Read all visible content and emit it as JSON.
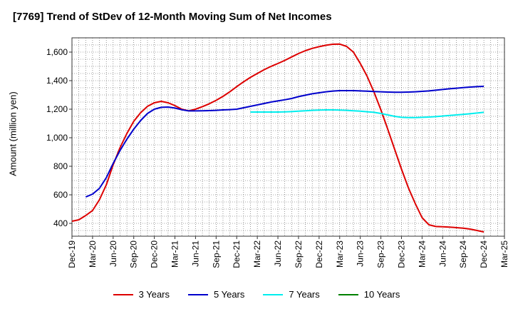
{
  "chart_data": {
    "type": "line",
    "title": "[7769]  Trend of StDev of 12-Month Moving Sum of Net Incomes",
    "ylabel": "Amount (million yen)",
    "xlabel": "",
    "ylim": [
      310,
      1700
    ],
    "yticks": [
      400,
      600,
      800,
      1000,
      1200,
      1400,
      1600
    ],
    "ytick_labels": [
      "400",
      "600",
      "800",
      "1,000",
      "1,200",
      "1,400",
      "1,600"
    ],
    "xticks": [
      "Dec-19",
      "Mar-20",
      "Jun-20",
      "Sep-20",
      "Dec-20",
      "Mar-21",
      "Jun-21",
      "Sep-21",
      "Dec-21",
      "Mar-22",
      "Jun-22",
      "Sep-22",
      "Dec-22",
      "Mar-23",
      "Jun-23",
      "Sep-23",
      "Dec-23",
      "Mar-24",
      "Jun-24",
      "Sep-24",
      "Dec-24",
      "Mar-25"
    ],
    "grid": true,
    "legend_position": "bottom",
    "series": [
      {
        "name": "3 Years",
        "color": "#dd0000",
        "points": [
          [
            "Dec-19",
            415
          ],
          [
            "Jan-20",
            425
          ],
          [
            "Feb-20",
            455
          ],
          [
            "Mar-20",
            490
          ],
          [
            "Apr-20",
            565
          ],
          [
            "May-20",
            670
          ],
          [
            "Jun-20",
            810
          ],
          [
            "Jul-20",
            930
          ],
          [
            "Aug-20",
            1030
          ],
          [
            "Sep-20",
            1115
          ],
          [
            "Oct-20",
            1175
          ],
          [
            "Nov-20",
            1220
          ],
          [
            "Dec-20",
            1245
          ],
          [
            "Jan-21",
            1255
          ],
          [
            "Feb-21",
            1245
          ],
          [
            "Mar-21",
            1225
          ],
          [
            "Apr-21",
            1200
          ],
          [
            "May-21",
            1188
          ],
          [
            "Jun-21",
            1200
          ],
          [
            "Jul-21",
            1218
          ],
          [
            "Aug-21",
            1238
          ],
          [
            "Sep-21",
            1262
          ],
          [
            "Oct-21",
            1290
          ],
          [
            "Nov-21",
            1322
          ],
          [
            "Dec-21",
            1358
          ],
          [
            "Jan-22",
            1392
          ],
          [
            "Feb-22",
            1423
          ],
          [
            "Mar-22",
            1450
          ],
          [
            "Apr-22",
            1477
          ],
          [
            "May-22",
            1500
          ],
          [
            "Jun-22",
            1520
          ],
          [
            "Jul-22",
            1542
          ],
          [
            "Aug-22",
            1566
          ],
          [
            "Sep-22",
            1590
          ],
          [
            "Oct-22",
            1610
          ],
          [
            "Nov-22",
            1626
          ],
          [
            "Dec-22",
            1638
          ],
          [
            "Jan-23",
            1648
          ],
          [
            "Feb-23",
            1655
          ],
          [
            "Mar-23",
            1656
          ],
          [
            "Apr-23",
            1640
          ],
          [
            "May-23",
            1600
          ],
          [
            "Jun-23",
            1520
          ],
          [
            "Jul-23",
            1430
          ],
          [
            "Aug-23",
            1320
          ],
          [
            "Sep-23",
            1195
          ],
          [
            "Oct-23",
            1060
          ],
          [
            "Nov-23",
            920
          ],
          [
            "Dec-23",
            780
          ],
          [
            "Jan-24",
            650
          ],
          [
            "Feb-24",
            540
          ],
          [
            "Mar-24",
            440
          ],
          [
            "Apr-24",
            390
          ],
          [
            "May-24",
            378
          ],
          [
            "Jun-24",
            376
          ],
          [
            "Jul-24",
            374
          ],
          [
            "Aug-24",
            370
          ],
          [
            "Sep-24",
            366
          ],
          [
            "Oct-24",
            360
          ],
          [
            "Nov-24",
            350
          ],
          [
            "Dec-24",
            340
          ]
        ]
      },
      {
        "name": "5 Years",
        "color": "#0000cc",
        "points": [
          [
            "Feb-20",
            585
          ],
          [
            "Mar-20",
            605
          ],
          [
            "Apr-20",
            645
          ],
          [
            "May-20",
            720
          ],
          [
            "Jun-20",
            820
          ],
          [
            "Jul-20",
            910
          ],
          [
            "Aug-20",
            990
          ],
          [
            "Sep-20",
            1060
          ],
          [
            "Oct-20",
            1120
          ],
          [
            "Nov-20",
            1170
          ],
          [
            "Dec-20",
            1200
          ],
          [
            "Jan-21",
            1213
          ],
          [
            "Feb-21",
            1215
          ],
          [
            "Mar-21",
            1208
          ],
          [
            "Apr-21",
            1196
          ],
          [
            "May-21",
            1188
          ],
          [
            "Jun-21",
            1188
          ],
          [
            "Jul-21",
            1189
          ],
          [
            "Aug-21",
            1190
          ],
          [
            "Sep-21",
            1192
          ],
          [
            "Oct-21",
            1195
          ],
          [
            "Nov-21",
            1197
          ],
          [
            "Dec-21",
            1200
          ],
          [
            "Jan-22",
            1210
          ],
          [
            "Feb-22",
            1220
          ],
          [
            "Mar-22",
            1230
          ],
          [
            "Apr-22",
            1240
          ],
          [
            "May-22",
            1250
          ],
          [
            "Jun-22",
            1258
          ],
          [
            "Jul-22",
            1266
          ],
          [
            "Aug-22",
            1275
          ],
          [
            "Sep-22",
            1288
          ],
          [
            "Oct-22",
            1298
          ],
          [
            "Nov-22",
            1308
          ],
          [
            "Dec-22",
            1315
          ],
          [
            "Jan-23",
            1322
          ],
          [
            "Feb-23",
            1327
          ],
          [
            "Mar-23",
            1330
          ],
          [
            "Apr-23",
            1330
          ],
          [
            "May-23",
            1330
          ],
          [
            "Jun-23",
            1328
          ],
          [
            "Jul-23",
            1326
          ],
          [
            "Aug-23",
            1324
          ],
          [
            "Sep-23",
            1322
          ],
          [
            "Oct-23",
            1320
          ],
          [
            "Nov-23",
            1319
          ],
          [
            "Dec-23",
            1319
          ],
          [
            "Jan-24",
            1320
          ],
          [
            "Feb-24",
            1322
          ],
          [
            "Mar-24",
            1325
          ],
          [
            "Apr-24",
            1328
          ],
          [
            "May-24",
            1333
          ],
          [
            "Jun-24",
            1338
          ],
          [
            "Jul-24",
            1343
          ],
          [
            "Aug-24",
            1347
          ],
          [
            "Sep-24",
            1351
          ],
          [
            "Oct-24",
            1355
          ],
          [
            "Nov-24",
            1358
          ],
          [
            "Dec-24",
            1360
          ]
        ]
      },
      {
        "name": "7 Years",
        "color": "#00eeee",
        "points": [
          [
            "Feb-22",
            1180
          ],
          [
            "Mar-22",
            1180
          ],
          [
            "Apr-22",
            1180
          ],
          [
            "May-22",
            1180
          ],
          [
            "Jun-22",
            1180
          ],
          [
            "Jul-22",
            1181
          ],
          [
            "Aug-22",
            1183
          ],
          [
            "Sep-22",
            1186
          ],
          [
            "Oct-22",
            1189
          ],
          [
            "Nov-22",
            1192
          ],
          [
            "Dec-22",
            1194
          ],
          [
            "Jan-23",
            1195
          ],
          [
            "Feb-23",
            1195
          ],
          [
            "Mar-23",
            1194
          ],
          [
            "Apr-23",
            1192
          ],
          [
            "May-23",
            1189
          ],
          [
            "Jun-23",
            1186
          ],
          [
            "Jul-23",
            1182
          ],
          [
            "Aug-23",
            1178
          ],
          [
            "Sep-23",
            1170
          ],
          [
            "Oct-23",
            1160
          ],
          [
            "Nov-23",
            1150
          ],
          [
            "Dec-23",
            1143
          ],
          [
            "Jan-24",
            1141
          ],
          [
            "Feb-24",
            1141
          ],
          [
            "Mar-24",
            1143
          ],
          [
            "Apr-24",
            1145
          ],
          [
            "May-24",
            1148
          ],
          [
            "Jun-24",
            1152
          ],
          [
            "Jul-24",
            1156
          ],
          [
            "Aug-24",
            1160
          ],
          [
            "Sep-24",
            1164
          ],
          [
            "Oct-24",
            1168
          ],
          [
            "Nov-24",
            1173
          ],
          [
            "Dec-24",
            1178
          ]
        ]
      },
      {
        "name": "10 Years",
        "color": "#008000",
        "points": []
      }
    ]
  }
}
